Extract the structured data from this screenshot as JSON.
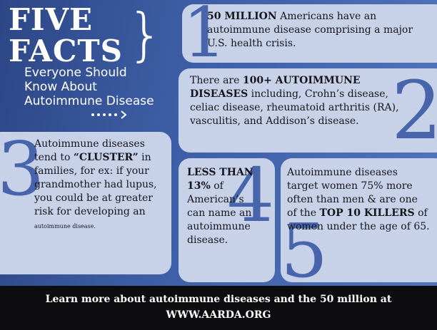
{
  "header": {
    "title": "FIVE FACTS",
    "subtitle": "Everyone Should Know About Autoimmune Disease"
  },
  "facts": [
    {
      "number": "1",
      "bold": "50 MILLION",
      "text": " Americans have an autoimmune disease comprising a major U.S. health crisis."
    },
    {
      "number": "2",
      "text_before": "There are ",
      "bold": "100+ AUTOIMMUNE DISEASES",
      "text_after": " including, Crohn’s disease, celiac disease, rheumatoid arthritis (RA), vasculitis, and Addison’s disease."
    },
    {
      "number": "3",
      "text_before": "Autoimmune diseases tend to ",
      "bold": "“CLUSTER”",
      "text_after": " in families, for ex: if your grandmother had lupus, you could be at greater risk for developing an ",
      "small": "autoimmune disease."
    },
    {
      "number": "4",
      "bold": "LESS THAN 13%",
      "text": " of American’s can name an autoimmune disease."
    },
    {
      "number": "5",
      "text_before": "Autoimmune diseases target women 75% more often than men & are one of the ",
      "bold": "TOP 10 KILLERS",
      "text_after": " of women under the age of 65."
    }
  ],
  "footer": {
    "line1": "Learn more about autoimmune diseases and the 50 million at",
    "line2": "WWW.AARDA.ORG"
  }
}
